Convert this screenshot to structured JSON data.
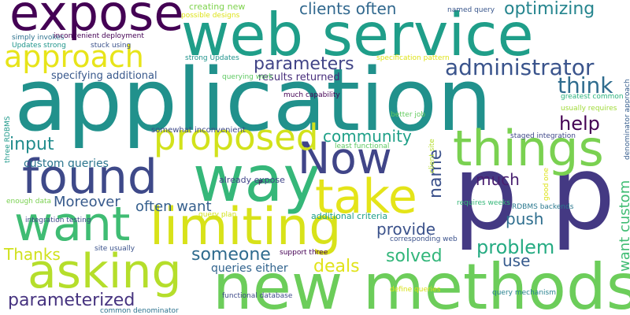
{
  "words": [
    "application",
    "web service",
    "expose",
    "new methods",
    "p p",
    "way",
    "found",
    "want",
    "asking",
    "limiting",
    "take",
    "things",
    "Now",
    "proposed",
    "approach",
    "parameters",
    "administrator",
    "clients often",
    "optimizing",
    "creating new",
    "possible designs",
    "named query",
    "think",
    "help",
    "community",
    "name",
    "input",
    "custom queries",
    "Moreover",
    "often want",
    "specifying additional",
    "results returned",
    "much",
    "push",
    "provide",
    "problem",
    "solved",
    "use",
    "deals",
    "someone",
    "queries either",
    "Thanks",
    "parameterized",
    "want custom",
    "simply invokes",
    "inconvenient deployment",
    "Updates strong",
    "stuck using",
    "strong Updates",
    "querying work",
    "specification pattern",
    "much capability",
    "somewhat inconvenient",
    "better job",
    "greatest common",
    "usually requires",
    "denominator approach",
    "three RDBMS",
    "already expose",
    "least functional",
    "client site",
    "staged integration",
    "requires weeks",
    "good one",
    "RDBMS backends",
    "P",
    "enough data",
    "integration testing",
    "query plan",
    "additional criteria",
    "corresponding web",
    "site usually",
    "support three",
    "define queries",
    "query mechanism",
    "functional database",
    "common denominator"
  ]
}
